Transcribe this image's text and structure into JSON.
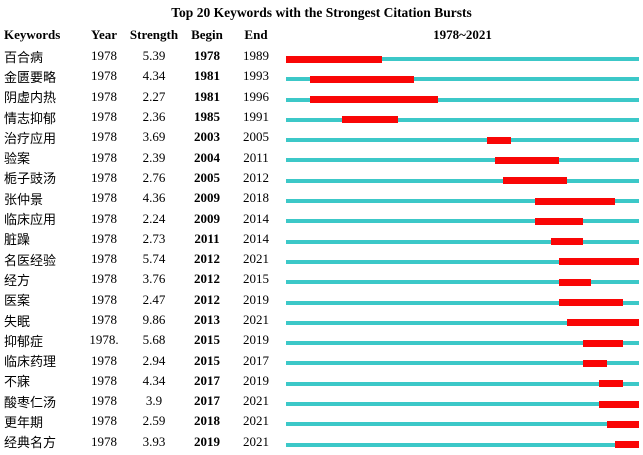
{
  "chart_data": {
    "type": "table",
    "title": "Top 20 Keywords with the Strongest Citation Bursts",
    "headers": {
      "keywords": "Keywords",
      "year": "Year",
      "strength": "Strength",
      "begin": "Begin",
      "end": "End",
      "timeline": "1978~2021"
    },
    "timeline_range": {
      "start": 1978,
      "end": 2021
    },
    "colors": {
      "track": "#3cc8c8",
      "burst": "#f90606"
    },
    "rows": [
      {
        "keyword": "百合病",
        "year": "1978",
        "strength": "5.39",
        "begin": 1978,
        "end": 1989
      },
      {
        "keyword": "金匮要略",
        "year": "1978",
        "strength": "4.34",
        "begin": 1981,
        "end": 1993
      },
      {
        "keyword": "阴虚内热",
        "year": "1978",
        "strength": "2.27",
        "begin": 1981,
        "end": 1996
      },
      {
        "keyword": "情志抑郁",
        "year": "1978",
        "strength": "2.36",
        "begin": 1985,
        "end": 1991
      },
      {
        "keyword": "治疗应用",
        "year": "1978",
        "strength": "3.69",
        "begin": 2003,
        "end": 2005
      },
      {
        "keyword": "验案",
        "year": "1978",
        "strength": "2.39",
        "begin": 2004,
        "end": 2011
      },
      {
        "keyword": "栀子豉汤",
        "year": "1978",
        "strength": "2.76",
        "begin": 2005,
        "end": 2012
      },
      {
        "keyword": "张仲景",
        "year": "1978",
        "strength": "4.36",
        "begin": 2009,
        "end": 2018
      },
      {
        "keyword": "临床应用",
        "year": "1978",
        "strength": "2.24",
        "begin": 2009,
        "end": 2014
      },
      {
        "keyword": "脏躁",
        "year": "1978",
        "strength": "2.73",
        "begin": 2011,
        "end": 2014
      },
      {
        "keyword": "名医经验",
        "year": "1978",
        "strength": "5.74",
        "begin": 2012,
        "end": 2021
      },
      {
        "keyword": "经方",
        "year": "1978",
        "strength": "3.76",
        "begin": 2012,
        "end": 2015
      },
      {
        "keyword": "医案",
        "year": "1978",
        "strength": "2.47",
        "begin": 2012,
        "end": 2019
      },
      {
        "keyword": "失眠",
        "year": "1978",
        "strength": "9.86",
        "begin": 2013,
        "end": 2021
      },
      {
        "keyword": "抑郁症",
        "year": "1978.",
        "strength": "5.68",
        "begin": 2015,
        "end": 2019
      },
      {
        "keyword": "临床药理",
        "year": "1978",
        "strength": "2.94",
        "begin": 2015,
        "end": 2017
      },
      {
        "keyword": "不寐",
        "year": "1978",
        "strength": "4.34",
        "begin": 2017,
        "end": 2019
      },
      {
        "keyword": "酸枣仁汤",
        "year": "1978",
        "strength": "3.9",
        "begin": 2017,
        "end": 2021
      },
      {
        "keyword": "更年期",
        "year": "1978",
        "strength": "2.59",
        "begin": 2018,
        "end": 2021
      },
      {
        "keyword": "经典名方",
        "year": "1978",
        "strength": "3.93",
        "begin": 2019,
        "end": 2021
      }
    ]
  }
}
